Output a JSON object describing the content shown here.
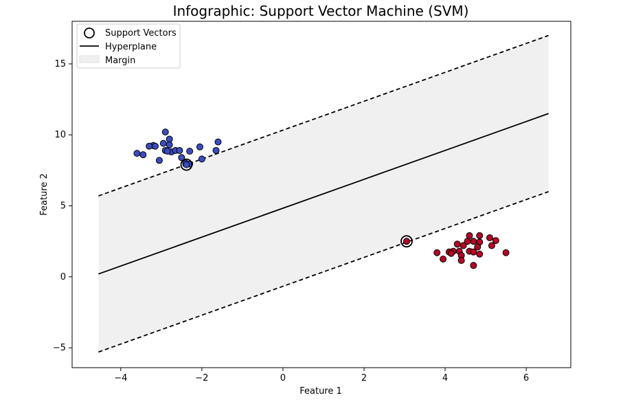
{
  "chart_data": {
    "type": "scatter",
    "title": "Infographic: Support Vector Machine (SVM)",
    "xlabel": "Feature 1",
    "ylabel": "Feature 2",
    "xlim": [
      -5.2,
      7.1
    ],
    "ylim": [
      -6.4,
      18.0
    ],
    "xticks": [
      -4,
      -2,
      0,
      2,
      4,
      6
    ],
    "yticks": [
      -5,
      0,
      5,
      10,
      15
    ],
    "xtick_labels": [
      "−4",
      "−2",
      "0",
      "2",
      "4",
      "6"
    ],
    "ytick_labels": [
      "−5",
      "0",
      "5",
      "10",
      "15"
    ],
    "grid": false,
    "legend": {
      "placement": "top-left",
      "entries": [
        "Support Vectors",
        "Hyperplane",
        "Margin"
      ]
    },
    "colors": {
      "class_0": "#3b4cc0",
      "class_1": "#b40426",
      "hyperplane": "#000000",
      "margin_fill": "#f0f0f0"
    },
    "hyperplane": {
      "x": [
        -4.55,
        6.55
      ],
      "y": [
        0.2,
        11.5
      ]
    },
    "margin_upper": {
      "x": [
        -4.55,
        6.55
      ],
      "y": [
        5.7,
        17.0
      ]
    },
    "margin_lower": {
      "x": [
        -4.55,
        6.55
      ],
      "y": [
        -5.3,
        6.0
      ]
    },
    "series": [
      {
        "class": 0,
        "points": [
          [
            -2.9,
            10.2
          ],
          [
            -2.8,
            9.7
          ],
          [
            -2.95,
            9.4
          ],
          [
            -2.8,
            9.3
          ],
          [
            -3.2,
            9.25
          ],
          [
            -3.3,
            9.2
          ],
          [
            -3.15,
            9.2
          ],
          [
            -2.9,
            8.9
          ],
          [
            -2.75,
            8.8
          ],
          [
            -2.65,
            8.9
          ],
          [
            -2.55,
            8.9
          ],
          [
            -2.85,
            8.85
          ],
          [
            -2.3,
            8.85
          ],
          [
            -2.05,
            9.15
          ],
          [
            -1.6,
            9.5
          ],
          [
            -1.65,
            8.9
          ],
          [
            -3.6,
            8.7
          ],
          [
            -3.45,
            8.6
          ],
          [
            -2.5,
            8.4
          ],
          [
            -3.05,
            8.2
          ],
          [
            -2.0,
            8.3
          ],
          [
            -2.4,
            8.0
          ],
          [
            -2.3,
            7.95
          ],
          [
            -2.38,
            7.9
          ]
        ]
      },
      {
        "class": 1,
        "points": [
          [
            4.6,
            2.9
          ],
          [
            4.85,
            2.9
          ],
          [
            5.1,
            2.75
          ],
          [
            5.25,
            2.55
          ],
          [
            4.3,
            2.3
          ],
          [
            4.55,
            2.5
          ],
          [
            4.7,
            2.5
          ],
          [
            4.85,
            2.45
          ],
          [
            4.45,
            2.2
          ],
          [
            4.8,
            2.1
          ],
          [
            5.15,
            2.2
          ],
          [
            4.2,
            1.8
          ],
          [
            4.35,
            1.8
          ],
          [
            4.1,
            1.75
          ],
          [
            4.15,
            1.65
          ],
          [
            4.6,
            1.8
          ],
          [
            4.7,
            1.75
          ],
          [
            3.8,
            1.7
          ],
          [
            4.4,
            1.5
          ],
          [
            4.85,
            1.6
          ],
          [
            5.5,
            1.7
          ],
          [
            3.95,
            1.25
          ],
          [
            4.4,
            1.15
          ],
          [
            4.7,
            0.8
          ],
          [
            3.05,
            2.5
          ]
        ]
      }
    ],
    "support_vectors": [
      [
        -2.38,
        7.9
      ],
      [
        3.05,
        2.5
      ]
    ]
  }
}
